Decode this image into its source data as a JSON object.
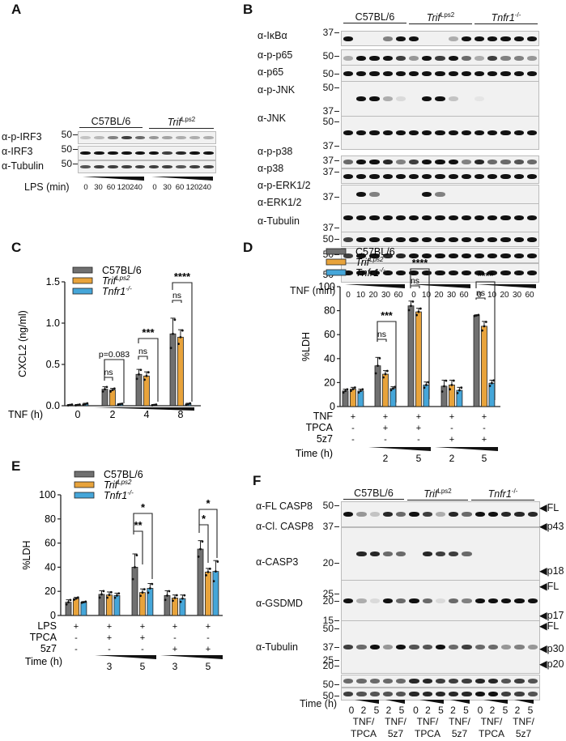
{
  "colors": {
    "c57": "#707070",
    "trif": "#E8A33B",
    "tnfr1": "#45A6D9",
    "bar_edge": "#222222"
  },
  "legend": {
    "c57": "C57BL/6",
    "trif": "Trif",
    "trif_sup": "Lps2",
    "tnfr1": "Tnfr1",
    "tnfr1_sup": "-/-"
  },
  "panels": {
    "A": {
      "letter": "A",
      "groups": [
        "C57BL/6",
        "Trif^Lps2"
      ],
      "antibodies": [
        "α-p-IRF3",
        "α-IRF3",
        "α-Tubulin"
      ],
      "mw": [
        "50",
        "50",
        "50"
      ],
      "xlabel": "LPS (min)",
      "timepoints": [
        "0",
        "30",
        "60",
        "120",
        "240"
      ]
    },
    "B": {
      "letter": "B",
      "groups": [
        "C57BL/6",
        "Trif^Lps2",
        "Tnfr1^-/-"
      ],
      "antibodies": [
        "α-IκBα",
        "α-p-p65",
        "α-p65",
        "α-p-JNK",
        "α-JNK",
        "α-p-p38",
        "α-p38",
        "α-p-ERK1/2",
        "α-ERK1/2",
        "α-Tubulin"
      ],
      "mw": [
        "37",
        "50",
        "50",
        "50",
        "37",
        "50",
        "37",
        "37",
        "37",
        "37",
        "37",
        "50",
        "50",
        "50"
      ],
      "xlabel": "TNF (min)",
      "timepoints": [
        "0",
        "10",
        "20",
        "30",
        "60"
      ]
    },
    "F": {
      "letter": "F",
      "groups": [
        "C57BL/6",
        "Trif^Lps2",
        "Tnfr1^-/-"
      ],
      "antibodies": [
        "α-FL CASP8",
        "α-Cl. CASP8",
        "α-CASP3",
        "α-GSDMD",
        "α-Tubulin"
      ],
      "mw": [
        "50",
        "37",
        "20",
        "25",
        "20",
        "15",
        "50",
        "37",
        "25",
        "20",
        "50",
        "50"
      ],
      "right_labels": [
        "◀FL",
        "◀p43",
        "◀p18",
        "◀FL",
        "◀p17",
        "◀FL",
        "◀p30",
        "◀p20"
      ],
      "xlabel": "Time (h)",
      "timepoints": [
        "0",
        "2",
        "5",
        "2",
        "5"
      ],
      "treatments": [
        "TNF/\nTPCA",
        "TNF/\n5z7",
        "TNF/\nTPCA",
        "TNF/\n5z7",
        "TNF/\nTPCA",
        "TNF/\n5z7"
      ]
    }
  },
  "chart_data": [
    {
      "panel": "C",
      "type": "bar",
      "title": "",
      "xlabel": "TNF (h)",
      "ylabel": "CXCL2 (ng/ml)",
      "ylim": [
        0,
        1.5
      ],
      "yticks": [
        "0.0",
        "0.5",
        "1.0",
        "1.5"
      ],
      "categories": [
        "0",
        "2",
        "4",
        "8"
      ],
      "series": [
        {
          "name": "C57BL/6",
          "values": [
            0.01,
            0.2,
            0.38,
            0.87
          ],
          "errors": [
            0.005,
            0.03,
            0.06,
            0.19
          ]
        },
        {
          "name": "Trif^Lps2",
          "values": [
            0.01,
            0.19,
            0.36,
            0.83
          ],
          "errors": [
            0.005,
            0.02,
            0.05,
            0.09
          ]
        },
        {
          "name": "Tnfr1^-/-",
          "values": [
            0.02,
            0.02,
            0.01,
            0.02
          ],
          "errors": [
            0.01,
            0.005,
            0.005,
            0.01
          ]
        }
      ],
      "annotations": [
        {
          "category": "2",
          "text": "p=0.083"
        },
        {
          "category": "2",
          "text": "ns"
        },
        {
          "category": "4",
          "text": "***"
        },
        {
          "category": "4",
          "text": "ns"
        },
        {
          "category": "8",
          "text": "****"
        },
        {
          "category": "8",
          "text": "ns"
        }
      ],
      "legend_position": "top-left"
    },
    {
      "panel": "D",
      "type": "bar",
      "xlabel": "Time (h)",
      "ylabel": "%LDH",
      "ylim": [
        0,
        100
      ],
      "yticks": [
        "0",
        "20",
        "40",
        "60",
        "80",
        "100"
      ],
      "conditions": {
        "rows": [
          "TNF",
          "TPCA",
          "5z7"
        ],
        "values": [
          [
            "+",
            "-",
            "-"
          ],
          [
            "+",
            "+",
            "-"
          ],
          [
            "+",
            "+",
            "-"
          ],
          [
            "+",
            "-",
            "+"
          ],
          [
            "+",
            "-",
            "+"
          ]
        ]
      },
      "categories": [
        "TNF",
        "TNF+TPCA 2h",
        "TNF+TPCA 5h",
        "TNF+5z7 2h",
        "TNF+5z7 5h"
      ],
      "time_labels": [
        "",
        "2",
        "5",
        "2",
        "5"
      ],
      "series": [
        {
          "name": "C57BL/6",
          "values": [
            13,
            34,
            84,
            17,
            76
          ],
          "errors": [
            1.5,
            7,
            4,
            5,
            0.5
          ]
        },
        {
          "name": "Trif^Lps2",
          "values": [
            14.5,
            27,
            79,
            18,
            67
          ],
          "errors": [
            1.5,
            3,
            3,
            4,
            4
          ]
        },
        {
          "name": "Tnfr1^-/-",
          "values": [
            13,
            15,
            18,
            13.5,
            19.5
          ],
          "errors": [
            1.5,
            1.5,
            2.5,
            2.5,
            2.5
          ]
        }
      ],
      "annotations": [
        {
          "category": 1,
          "text": "***"
        },
        {
          "category": 1,
          "text": "ns"
        },
        {
          "category": 2,
          "text": "****"
        },
        {
          "category": 2,
          "text": "ns"
        },
        {
          "category": 4,
          "text": "****"
        },
        {
          "category": 4,
          "text": "ns"
        }
      ],
      "legend_position": "top"
    },
    {
      "panel": "E",
      "type": "bar",
      "xlabel": "Time (h)",
      "ylabel": "%LDH",
      "ylim": [
        0,
        100
      ],
      "yticks": [
        "0",
        "20",
        "40",
        "60",
        "80",
        "100"
      ],
      "conditions": {
        "rows": [
          "LPS",
          "TPCA",
          "5z7"
        ],
        "values": [
          [
            "+",
            "-",
            "-"
          ],
          [
            "+",
            "+",
            "-"
          ],
          [
            "+",
            "+",
            "-"
          ],
          [
            "+",
            "-",
            "+"
          ],
          [
            "+",
            "-",
            "+"
          ]
        ]
      },
      "categories": [
        "LPS",
        "LPS+TPCA 3h",
        "LPS+TPCA 5h",
        "LPS+5z7 3h",
        "LPS+5z7 5h"
      ],
      "time_labels": [
        "",
        "3",
        "5",
        "3",
        "5"
      ],
      "series": [
        {
          "name": "C57BL/6",
          "values": [
            11,
            17.5,
            40,
            16.5,
            55
          ],
          "errors": [
            2,
            3,
            11,
            4,
            7
          ]
        },
        {
          "name": "Trif^Lps2",
          "values": [
            14,
            17,
            19,
            14.5,
            36
          ],
          "errors": [
            1,
            2.5,
            3,
            2.5,
            3
          ]
        },
        {
          "name": "Tnfr1^-/-",
          "values": [
            11,
            16.5,
            22.5,
            14,
            36.5
          ],
          "errors": [
            0.5,
            2,
            4,
            3,
            9
          ]
        }
      ],
      "annotations": [
        {
          "category": 2,
          "text": "**"
        },
        {
          "category": 2,
          "text": "*"
        },
        {
          "category": 4,
          "text": "*"
        },
        {
          "category": 4,
          "text": "*"
        }
      ],
      "legend_position": "top"
    }
  ]
}
